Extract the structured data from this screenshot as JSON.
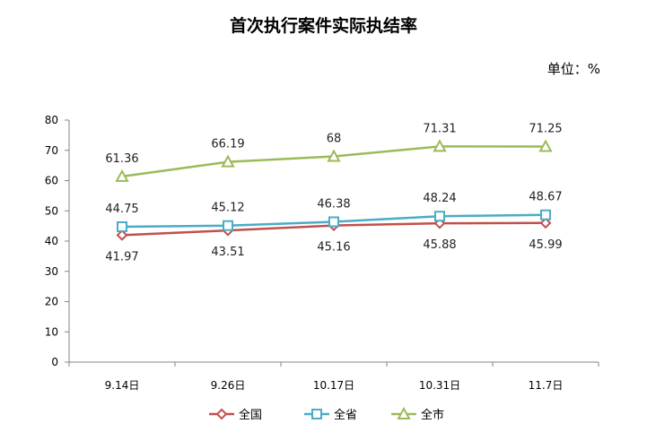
{
  "title": "首次执行案件实际执结率",
  "unit": "单位：%",
  "chart_data": {
    "type": "line",
    "title": "首次执行案件实际执结率",
    "xlabel": "",
    "ylabel": "",
    "categories": [
      "9.14日",
      "9.26日",
      "10.17日",
      "10.31日",
      "11.7日"
    ],
    "ylim": [
      0,
      80
    ],
    "yticks": [
      0,
      10,
      20,
      30,
      40,
      50,
      60,
      70,
      80
    ],
    "grid": false,
    "legend": "bottom",
    "series": [
      {
        "name": "全国",
        "values": [
          41.97,
          43.51,
          45.16,
          45.88,
          45.99
        ],
        "labels": [
          "41.97",
          "43.51",
          "45.16",
          "45.88",
          "45.99"
        ],
        "color": "#C0504D",
        "marker": "diamond",
        "label_position": "below"
      },
      {
        "name": "全省",
        "values": [
          44.75,
          45.12,
          46.38,
          48.24,
          48.67
        ],
        "labels": [
          "44.75",
          "45.12",
          "46.38",
          "48.24",
          "48.67"
        ],
        "color": "#4BACC6",
        "marker": "square",
        "label_position": "above"
      },
      {
        "name": "全市",
        "values": [
          61.36,
          66.19,
          68,
          71.31,
          71.25
        ],
        "labels": [
          "61.36",
          "66.19",
          "68",
          "71.31",
          "71.25"
        ],
        "color": "#9BBB59",
        "marker": "triangle",
        "label_position": "above"
      }
    ]
  }
}
